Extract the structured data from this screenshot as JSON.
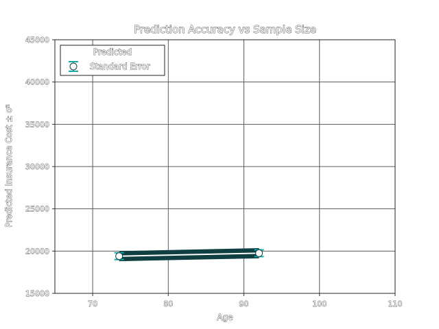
{
  "chart_data": {
    "type": "line",
    "title": "Prediction Accuracy vs Sample Size",
    "xlabel": "Age",
    "ylabel": "Predicted Insurance Cost ± σ²",
    "xlim": [
      65,
      110
    ],
    "ylim": [
      15000,
      45000
    ],
    "xticks": [
      "70",
      "80",
      "90",
      "100",
      "110"
    ],
    "yticks": [
      "15000",
      "20000",
      "25000",
      "30000",
      "35000",
      "40000",
      "45000"
    ],
    "grid": true,
    "legend": {
      "title": "Predicted",
      "placement": "top-left",
      "entries": [
        "Standard Error"
      ]
    },
    "series": [
      {
        "name": "Standard Error",
        "x": [
          73.5,
          92
        ],
        "y": [
          19400,
          19750
        ],
        "error": [
          400,
          400
        ],
        "band": 600,
        "color": "#0f3f40",
        "errorbar_color": "#17a8a8"
      }
    ]
  }
}
